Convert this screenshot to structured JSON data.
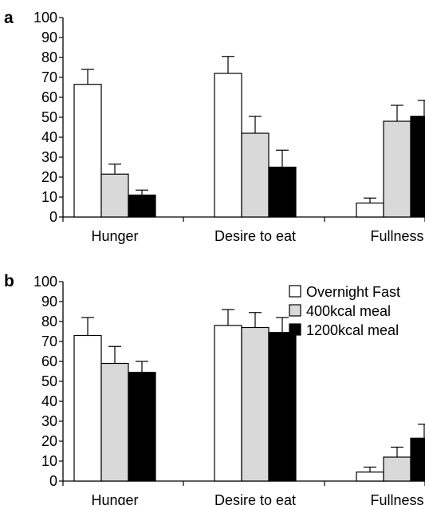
{
  "chart_data": [
    {
      "type": "bar",
      "panel_label": "a",
      "categories": [
        "Hunger",
        "Desire to eat",
        "Fullness"
      ],
      "series": [
        {
          "name": "Overnight Fast",
          "color": "#ffffff",
          "values": [
            66.5,
            72,
            7
          ],
          "errors": [
            7.5,
            8.5,
            2.5
          ]
        },
        {
          "name": "400kcal meal",
          "color": "#d9d9d9",
          "values": [
            21.5,
            42,
            48
          ],
          "errors": [
            5,
            8.5,
            8
          ]
        },
        {
          "name": "1200kcal meal",
          "color": "#000000",
          "values": [
            11,
            25,
            50.5
          ],
          "errors": [
            2.5,
            8.5,
            8
          ]
        }
      ],
      "y_ticks": [
        "0",
        "10",
        "20",
        "30",
        "40",
        "50",
        "60",
        "70",
        "80",
        "90",
        "100"
      ],
      "ylim": [
        0,
        100
      ],
      "legend": false
    },
    {
      "type": "bar",
      "panel_label": "b",
      "categories": [
        "Hunger",
        "Desire to eat",
        "Fullness"
      ],
      "series": [
        {
          "name": "Overnight Fast",
          "color": "#ffffff",
          "values": [
            73,
            78,
            4.5
          ],
          "errors": [
            9,
            8,
            2.5
          ]
        },
        {
          "name": "400kcal meal",
          "color": "#d9d9d9",
          "values": [
            59,
            77,
            12
          ],
          "errors": [
            8.5,
            7.5,
            5
          ]
        },
        {
          "name": "1200kcal meal",
          "color": "#000000",
          "values": [
            54.5,
            74.5,
            21.5
          ],
          "errors": [
            5.5,
            7.5,
            7
          ]
        }
      ],
      "y_ticks": [
        "0",
        "10",
        "20",
        "30",
        "40",
        "50",
        "60",
        "70",
        "80",
        "90",
        "100"
      ],
      "ylim": [
        0,
        100
      ],
      "legend": true,
      "legend_position": "top-right"
    }
  ]
}
